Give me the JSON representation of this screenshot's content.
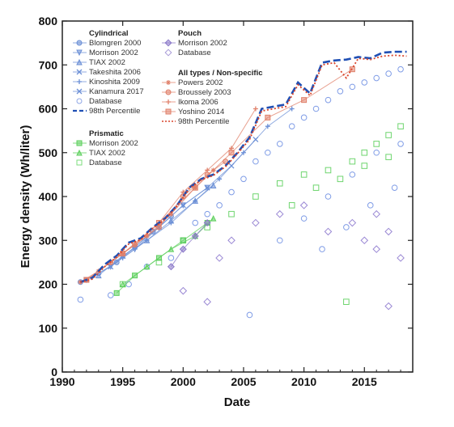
{
  "chart_data": {
    "type": "scatter",
    "title": "",
    "xlabel": "Date",
    "ylabel": "Energy density (Wh/liter)",
    "xlim": [
      1990,
      2019
    ],
    "ylim": [
      0,
      800
    ],
    "xticks": [
      1990,
      1995,
      2000,
      2005,
      2010,
      2015
    ],
    "yticks": [
      0,
      100,
      200,
      300,
      400,
      500,
      600,
      700,
      800
    ],
    "grid": false,
    "legend_position": "top-left",
    "legend_groups": [
      {
        "heading": "Cylindrical",
        "entries": [
          {
            "label": "Blomgren 2000",
            "color": "#6b8fd6",
            "marker": "circle"
          },
          {
            "label": "Morrison 2002",
            "color": "#6b8fd6",
            "marker": "triangle-down"
          },
          {
            "label": "TIAX 2002",
            "color": "#6b8fd6",
            "marker": "triangle-up"
          },
          {
            "label": "Takeshita 2006",
            "color": "#6b8fd6",
            "marker": "x"
          },
          {
            "label": "Kinoshita 2009",
            "color": "#6b8fd6",
            "marker": "plus"
          },
          {
            "label": "Kanamura 2017",
            "color": "#6b8fd6",
            "marker": "square-x"
          },
          {
            "label": "Database",
            "color": "#8fa7e6",
            "marker": "open-circle"
          },
          {
            "label": "98th Percentile",
            "color": "#1f4fb4",
            "marker": "dashed-line"
          }
        ]
      },
      {
        "heading": "Prismatic",
        "entries": [
          {
            "label": "Morrison 2002",
            "color": "#5ccf5c",
            "marker": "square"
          },
          {
            "label": "TIAX 2002",
            "color": "#5ccf5c",
            "marker": "triangle-up"
          },
          {
            "label": "Database",
            "color": "#7ede7e",
            "marker": "open-square"
          }
        ]
      },
      {
        "heading": "Pouch",
        "entries": [
          {
            "label": "Morrison 2002",
            "color": "#8a78c8",
            "marker": "diamond"
          },
          {
            "label": "Database",
            "color": "#a89ad8",
            "marker": "open-diamond"
          }
        ]
      },
      {
        "heading": "All types / Non-specific",
        "entries": [
          {
            "label": "Powers 2002",
            "color": "#e0806a",
            "marker": "star"
          },
          {
            "label": "Broussely 2003",
            "color": "#e0806a",
            "marker": "circle"
          },
          {
            "label": "Ikoma 2006",
            "color": "#e0806a",
            "marker": "plus"
          },
          {
            "label": "Yoshino 2014",
            "color": "#e0806a",
            "marker": "square"
          },
          {
            "label": "98th Percentile",
            "color": "#d9442a",
            "marker": "dotted-line"
          }
        ]
      }
    ],
    "series": [
      {
        "name": "Cylindrical 98th Percentile",
        "kind": "line",
        "style": "dashed",
        "color": "#1f4fb4",
        "x": [
          1991.5,
          1992.5,
          1993.5,
          1994.5,
          1995.5,
          1996.5,
          1997.5,
          1998.5,
          1999.5,
          2000.5,
          2001.5,
          2002.5,
          2003.5,
          2004.5,
          2005.5,
          2006.5,
          2007.5,
          2008.5,
          2009.5,
          2010.5,
          2011.5,
          2012.5,
          2013.5,
          2014.5,
          2015.5,
          2016.5,
          2017.5,
          2018.5
        ],
        "y": [
          205,
          215,
          245,
          265,
          295,
          305,
          330,
          350,
          380,
          420,
          440,
          450,
          470,
          500,
          535,
          600,
          605,
          610,
          660,
          635,
          705,
          710,
          712,
          718,
          715,
          728,
          730,
          730
        ]
      },
      {
        "name": "All types 98th Percentile",
        "kind": "line",
        "style": "dotted",
        "color": "#d9442a",
        "x": [
          1991.5,
          1992.5,
          1993.5,
          1994.5,
          1995.5,
          1996.5,
          1997.5,
          1998.5,
          1999.5,
          2000.5,
          2001.5,
          2002.5,
          2003.5,
          2004.5,
          2005.5,
          2006.5,
          2007.5,
          2008.5,
          2009.5,
          2010.5,
          2011.5,
          2012.5,
          2013.5,
          2014.5,
          2015.5,
          2016.5,
          2017.5,
          2018.5
        ],
        "y": [
          205,
          212,
          240,
          262,
          292,
          302,
          328,
          348,
          378,
          418,
          438,
          448,
          468,
          498,
          530,
          595,
          600,
          605,
          655,
          630,
          700,
          705,
          670,
          715,
          712,
          720,
          722,
          720
        ]
      },
      {
        "name": "Cylindrical Blomgren 2000",
        "kind": "line-markers",
        "color": "#6b8fd6",
        "x": [
          1991.5,
          1993,
          1994.5,
          1996,
          1997.5,
          1999
        ],
        "y": [
          205,
          225,
          250,
          285,
          320,
          355
        ]
      },
      {
        "name": "Cylindrical Morrison 2002",
        "kind": "line-markers",
        "color": "#6b8fd6",
        "x": [
          1992,
          1994,
          1996,
          1998,
          2000,
          2002
        ],
        "y": [
          210,
          240,
          280,
          330,
          380,
          420
        ]
      },
      {
        "name": "Cylindrical TIAX 2002",
        "kind": "line-markers",
        "color": "#6b8fd6",
        "x": [
          1993,
          1995,
          1997,
          1999,
          2001,
          2002.5
        ],
        "y": [
          220,
          265,
          300,
          345,
          390,
          425
        ]
      },
      {
        "name": "Cylindrical Takeshita 2006",
        "kind": "line-markers",
        "color": "#6b8fd6",
        "x": [
          1994,
          1996,
          1998,
          2000,
          2002,
          2004,
          2006
        ],
        "y": [
          240,
          285,
          330,
          380,
          420,
          470,
          530
        ]
      },
      {
        "name": "Cylindrical Kinoshita 2009",
        "kind": "line-markers",
        "color": "#6b8fd6",
        "x": [
          1995,
          1997,
          1999,
          2001,
          2003,
          2005,
          2007,
          2009
        ],
        "y": [
          260,
          300,
          340,
          390,
          440,
          500,
          560,
          600
        ]
      },
      {
        "name": "Prismatic Morrison 2002",
        "kind": "line-markers",
        "color": "#5ccf5c",
        "x": [
          1994.5,
          1996,
          1998,
          2000,
          2002
        ],
        "y": [
          180,
          220,
          260,
          300,
          340
        ]
      },
      {
        "name": "Prismatic TIAX 2002",
        "kind": "line-markers",
        "color": "#5ccf5c",
        "x": [
          1995,
          1997,
          1999,
          2001,
          2002.5
        ],
        "y": [
          200,
          240,
          280,
          310,
          350
        ]
      },
      {
        "name": "Pouch Morrison 2002",
        "kind": "line-markers",
        "color": "#8a78c8",
        "x": [
          1999,
          2000,
          2001,
          2002
        ],
        "y": [
          240,
          280,
          310,
          340
        ]
      },
      {
        "name": "All types Powers 2002",
        "kind": "line-markers",
        "color": "#e0806a",
        "x": [
          1991.5,
          1993,
          1995,
          1997,
          1999,
          2001,
          2002.5
        ],
        "y": [
          205,
          230,
          270,
          310,
          360,
          420,
          460
        ]
      },
      {
        "name": "All types Broussely 2003",
        "kind": "line-markers",
        "color": "#e0806a",
        "x": [
          1992,
          1994,
          1996,
          1998,
          2000,
          2002,
          2003.5
        ],
        "y": [
          210,
          250,
          290,
          330,
          400,
          450,
          480
        ]
      },
      {
        "name": "All types Ikoma 2006",
        "kind": "line-markers",
        "color": "#e0806a",
        "x": [
          1994,
          1996,
          1998,
          2000,
          2002,
          2004,
          2006
        ],
        "y": [
          250,
          290,
          340,
          410,
          460,
          510,
          600
        ]
      },
      {
        "name": "All types Yoshino 2014",
        "kind": "line-markers",
        "color": "#e0806a",
        "x": [
          1992,
          1995,
          1998,
          2001,
          2004,
          2007,
          2010,
          2014
        ],
        "y": [
          210,
          270,
          340,
          420,
          500,
          580,
          620,
          690
        ]
      }
    ],
    "database_clusters": [
      {
        "type": "cylindrical",
        "color": "#7f9ce6",
        "marker": "open-circle",
        "points": [
          [
            1991.5,
            165
          ],
          [
            1994,
            175
          ],
          [
            1995.5,
            200
          ],
          [
            1997,
            240
          ],
          [
            1999,
            260
          ],
          [
            2000,
            300
          ],
          [
            2001,
            340
          ],
          [
            2002,
            360
          ],
          [
            2003,
            380
          ],
          [
            2004,
            410
          ],
          [
            2005,
            440
          ],
          [
            2005.5,
            130
          ],
          [
            2006,
            480
          ],
          [
            2007,
            500
          ],
          [
            2008,
            520
          ],
          [
            2009,
            560
          ],
          [
            2010,
            580
          ],
          [
            2011,
            600
          ],
          [
            2012,
            620
          ],
          [
            2013,
            640
          ],
          [
            2014,
            650
          ],
          [
            2015,
            660
          ],
          [
            2016,
            670
          ],
          [
            2017,
            680
          ],
          [
            2018,
            690
          ],
          [
            2008,
            300
          ],
          [
            2010,
            350
          ],
          [
            2012,
            400
          ],
          [
            2014,
            450
          ],
          [
            2016,
            500
          ],
          [
            2018,
            520
          ],
          [
            2011.5,
            280
          ],
          [
            2013.5,
            330
          ],
          [
            2015.5,
            380
          ],
          [
            2017.5,
            420
          ]
        ]
      },
      {
        "type": "prismatic",
        "color": "#6fd56f",
        "marker": "open-square",
        "points": [
          [
            1995,
            200
          ],
          [
            1998,
            250
          ],
          [
            2000,
            300
          ],
          [
            2002,
            330
          ],
          [
            2004,
            360
          ],
          [
            2006,
            400
          ],
          [
            2008,
            430
          ],
          [
            2010,
            450
          ],
          [
            2012,
            460
          ],
          [
            2013.5,
            160
          ],
          [
            2014,
            480
          ],
          [
            2015,
            500
          ],
          [
            2016,
            520
          ],
          [
            2017,
            540
          ],
          [
            2018,
            560
          ],
          [
            2009,
            380
          ],
          [
            2011,
            420
          ],
          [
            2013,
            440
          ],
          [
            2015,
            470
          ],
          [
            2017,
            490
          ]
        ]
      },
      {
        "type": "pouch",
        "color": "#9a88d4",
        "marker": "open-diamond",
        "points": [
          [
            2000,
            185
          ],
          [
            2002,
            160
          ],
          [
            2003,
            260
          ],
          [
            2004,
            300
          ],
          [
            2006,
            340
          ],
          [
            2008,
            360
          ],
          [
            2010,
            380
          ],
          [
            2012,
            320
          ],
          [
            2014,
            340
          ],
          [
            2015,
            300
          ],
          [
            2016,
            280
          ],
          [
            2017,
            150
          ],
          [
            2018,
            260
          ],
          [
            2017,
            320
          ],
          [
            2016,
            360
          ]
        ]
      }
    ]
  }
}
